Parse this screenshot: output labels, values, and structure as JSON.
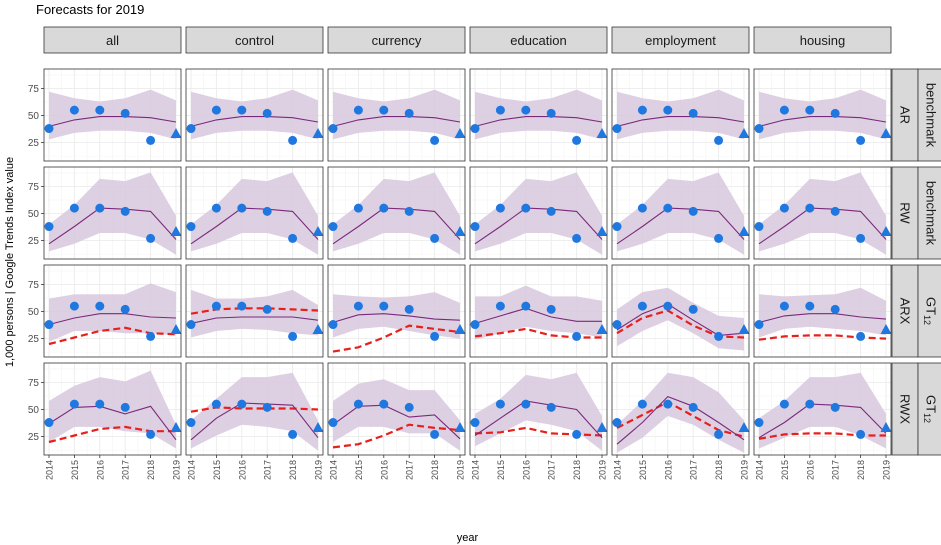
{
  "chart_data": {
    "type": "line",
    "title": "Forecasts for  2019",
    "xlabel": "year",
    "ylabel": "1,000 persons | Google Trends Index value",
    "x": [
      2014,
      2015,
      2016,
      2017,
      2018,
      2019
    ],
    "x_tick_labels": [
      "2014",
      "2015",
      "2016",
      "2017",
      "2018",
      "2019"
    ],
    "ylim": [
      8,
      93
    ],
    "y_ticks": [
      25,
      50,
      75
    ],
    "grid": true,
    "columns": [
      "all",
      "control",
      "currency",
      "education",
      "employment",
      "housing"
    ],
    "rows": [
      {
        "model": "AR",
        "group": "benchmark"
      },
      {
        "model": "RW",
        "group": "benchmark"
      },
      {
        "model": "ARX",
        "group": "GT",
        "group_sub": "12"
      },
      {
        "model": "RWX",
        "group": "GT",
        "group_sub": "12"
      }
    ],
    "observed": {
      "name": "observed",
      "x": [
        2014,
        2015,
        2016,
        2017,
        2018
      ],
      "values": [
        38,
        55,
        55,
        52,
        27
      ],
      "color": "#1f77e0"
    },
    "target": {
      "name": "2019",
      "x": 2019,
      "value": 33,
      "color": "#1f77e0"
    },
    "panels": [
      [
        {
          "forecast": [
            40,
            46,
            49,
            49,
            48,
            44
          ],
          "lower": [
            28,
            34,
            36,
            36,
            34,
            28
          ],
          "upper": [
            72,
            66,
            63,
            66,
            74,
            64
          ]
        },
        {
          "forecast": [
            40,
            46,
            49,
            49,
            48,
            44
          ],
          "lower": [
            28,
            34,
            36,
            36,
            34,
            28
          ],
          "upper": [
            72,
            66,
            63,
            66,
            74,
            64
          ]
        },
        {
          "forecast": [
            40,
            46,
            49,
            49,
            48,
            44
          ],
          "lower": [
            28,
            34,
            36,
            36,
            34,
            28
          ],
          "upper": [
            72,
            66,
            63,
            66,
            74,
            64
          ]
        },
        {
          "forecast": [
            40,
            46,
            49,
            49,
            48,
            44
          ],
          "lower": [
            28,
            34,
            36,
            36,
            34,
            28
          ],
          "upper": [
            72,
            66,
            63,
            66,
            74,
            64
          ]
        },
        {
          "forecast": [
            40,
            46,
            49,
            49,
            48,
            44
          ],
          "lower": [
            28,
            34,
            36,
            36,
            34,
            28
          ],
          "upper": [
            72,
            66,
            63,
            66,
            74,
            64
          ]
        },
        {
          "forecast": [
            40,
            46,
            49,
            49,
            48,
            44
          ],
          "lower": [
            28,
            34,
            36,
            36,
            34,
            28
          ],
          "upper": [
            72,
            66,
            63,
            66,
            74,
            64
          ]
        }
      ],
      [
        {
          "forecast": [
            22,
            38,
            55,
            54,
            52,
            26
          ],
          "lower": [
            15,
            22,
            32,
            32,
            26,
            12
          ],
          "upper": [
            40,
            58,
            82,
            80,
            88,
            48
          ]
        },
        {
          "forecast": [
            22,
            38,
            55,
            54,
            52,
            26
          ],
          "lower": [
            15,
            22,
            32,
            32,
            26,
            12
          ],
          "upper": [
            40,
            58,
            82,
            80,
            88,
            48
          ]
        },
        {
          "forecast": [
            22,
            38,
            55,
            54,
            52,
            26
          ],
          "lower": [
            15,
            22,
            32,
            32,
            26,
            12
          ],
          "upper": [
            40,
            58,
            82,
            80,
            88,
            48
          ]
        },
        {
          "forecast": [
            22,
            38,
            55,
            54,
            52,
            26
          ],
          "lower": [
            15,
            22,
            32,
            32,
            26,
            12
          ],
          "upper": [
            40,
            58,
            82,
            80,
            88,
            48
          ]
        },
        {
          "forecast": [
            22,
            38,
            55,
            54,
            52,
            26
          ],
          "lower": [
            15,
            22,
            32,
            32,
            26,
            12
          ],
          "upper": [
            40,
            58,
            82,
            80,
            88,
            48
          ]
        },
        {
          "forecast": [
            22,
            38,
            55,
            54,
            52,
            26
          ],
          "lower": [
            15,
            22,
            32,
            32,
            26,
            12
          ],
          "upper": [
            40,
            58,
            82,
            80,
            88,
            48
          ]
        }
      ],
      [
        {
          "forecast": [
            38,
            44,
            48,
            48,
            45,
            44
          ],
          "lower": [
            22,
            32,
            32,
            30,
            30,
            28
          ],
          "upper": [
            62,
            66,
            66,
            66,
            76,
            68
          ],
          "red": [
            20,
            26,
            32,
            35,
            30,
            29
          ]
        },
        {
          "forecast": [
            39,
            44,
            45,
            45,
            45,
            42
          ],
          "lower": [
            26,
            32,
            34,
            33,
            30,
            28
          ],
          "upper": [
            70,
            62,
            62,
            64,
            70,
            56
          ],
          "red": [
            48,
            52,
            53,
            53,
            52,
            51
          ]
        },
        {
          "forecast": [
            40,
            47,
            48,
            46,
            43,
            42
          ],
          "lower": [
            26,
            34,
            36,
            32,
            28,
            25
          ],
          "upper": [
            66,
            64,
            63,
            64,
            68,
            58
          ],
          "red": [
            13,
            17,
            26,
            37,
            34,
            31
          ]
        },
        {
          "forecast": [
            39,
            46,
            53,
            45,
            41,
            41
          ],
          "lower": [
            24,
            30,
            36,
            32,
            30,
            26
          ],
          "upper": [
            64,
            64,
            74,
            64,
            64,
            60
          ],
          "red": [
            27,
            30,
            34,
            28,
            26,
            26
          ]
        },
        {
          "forecast": [
            33,
            48,
            57,
            42,
            28,
            30
          ],
          "lower": [
            18,
            32,
            42,
            30,
            16,
            14
          ],
          "upper": [
            52,
            68,
            72,
            58,
            46,
            44
          ],
          "red": [
            30,
            44,
            51,
            37,
            27,
            26
          ]
        },
        {
          "forecast": [
            40,
            46,
            48,
            48,
            45,
            43
          ],
          "lower": [
            26,
            34,
            36,
            34,
            32,
            28
          ],
          "upper": [
            66,
            64,
            65,
            66,
            72,
            60
          ],
          "red": [
            24,
            27,
            28,
            28,
            26,
            25
          ]
        }
      ],
      [
        {
          "forecast": [
            37,
            52,
            53,
            46,
            53,
            22
          ],
          "lower": [
            20,
            34,
            34,
            30,
            28,
            14
          ],
          "upper": [
            58,
            72,
            80,
            76,
            86,
            36
          ],
          "red": [
            20,
            26,
            32,
            34,
            30,
            30
          ]
        },
        {
          "forecast": [
            22,
            42,
            56,
            55,
            54,
            24
          ],
          "lower": [
            14,
            26,
            36,
            34,
            30,
            12
          ],
          "upper": [
            40,
            60,
            80,
            80,
            84,
            40
          ],
          "red": [
            48,
            52,
            51,
            51,
            51,
            50
          ]
        },
        {
          "forecast": [
            36,
            53,
            54,
            43,
            45,
            23
          ],
          "lower": [
            20,
            34,
            34,
            28,
            28,
            12
          ],
          "upper": [
            58,
            74,
            78,
            68,
            68,
            40
          ],
          "red": [
            15,
            18,
            26,
            36,
            33,
            31
          ]
        },
        {
          "forecast": [
            26,
            42,
            58,
            54,
            50,
            24
          ],
          "lower": [
            16,
            28,
            40,
            36,
            30,
            12
          ],
          "upper": [
            46,
            60,
            82,
            78,
            84,
            44
          ],
          "red": [
            28,
            29,
            33,
            28,
            27,
            26
          ]
        },
        {
          "forecast": [
            18,
            38,
            62,
            53,
            38,
            22
          ],
          "lower": [
            10,
            24,
            44,
            36,
            22,
            10
          ],
          "upper": [
            36,
            58,
            84,
            80,
            66,
            40
          ],
          "red": [
            33,
            45,
            57,
            44,
            31,
            25
          ]
        },
        {
          "forecast": [
            24,
            38,
            55,
            54,
            52,
            28
          ],
          "lower": [
            14,
            24,
            34,
            34,
            26,
            14
          ],
          "upper": [
            42,
            58,
            80,
            80,
            84,
            46
          ],
          "red": [
            23,
            27,
            28,
            28,
            26,
            26
          ]
        }
      ]
    ],
    "colors": {
      "band": "#d8c8de",
      "forecast_line": "#7a2a7a",
      "red_line": "#e8201c",
      "strip_bg": "#d9d9d9",
      "grid": "#ebebeb"
    }
  }
}
